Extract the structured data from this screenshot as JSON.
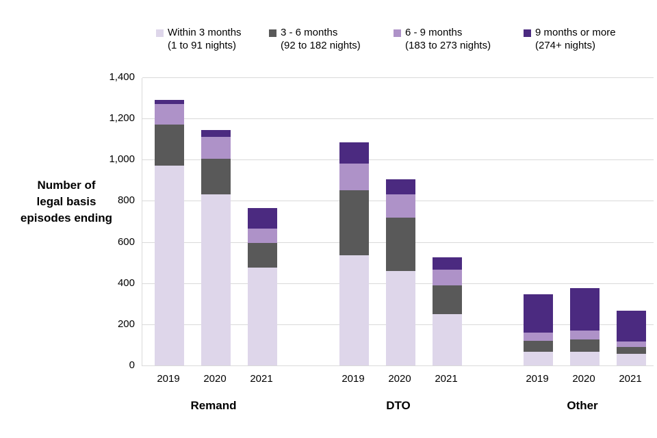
{
  "chart_data": {
    "type": "bar",
    "stacked": true,
    "ylabel_lines": [
      "Number of",
      "legal basis",
      "episodes ending"
    ],
    "ylim": [
      0,
      1400
    ],
    "grid": true,
    "legend_position": "top",
    "yticks": [
      {
        "value": 0,
        "label": "0"
      },
      {
        "value": 200,
        "label": "200"
      },
      {
        "value": 400,
        "label": "400"
      },
      {
        "value": 600,
        "label": "600"
      },
      {
        "value": 800,
        "label": "800"
      },
      {
        "value": 1000,
        "label": "1,000"
      },
      {
        "value": 1200,
        "label": "1,200"
      },
      {
        "value": 1400,
        "label": "1,400"
      }
    ],
    "groups": [
      {
        "label": "Remand",
        "categories": [
          "2019",
          "2020",
          "2021"
        ]
      },
      {
        "label": "DTO",
        "categories": [
          "2019",
          "2020",
          "2021"
        ]
      },
      {
        "label": "Other",
        "categories": [
          "2019",
          "2020",
          "2021"
        ]
      }
    ],
    "series": [
      {
        "legend_line1": "Within 3 months",
        "legend_line2": "(1 to 91 nights)",
        "color": "#ded6ea",
        "values": [
          [
            970,
            830,
            475
          ],
          [
            535,
            460,
            250
          ],
          [
            65,
            65,
            55
          ]
        ]
      },
      {
        "legend_line1": "3 - 6 months",
        "legend_line2": "(92 to 182 nights)",
        "color": "#595959",
        "values": [
          [
            200,
            175,
            120
          ],
          [
            315,
            260,
            140
          ],
          [
            55,
            60,
            35
          ]
        ]
      },
      {
        "legend_line1": "6 - 9 months",
        "legend_line2": "(183 to 273 nights)",
        "color": "#ae92c8",
        "values": [
          [
            100,
            105,
            70
          ],
          [
            130,
            110,
            75
          ],
          [
            40,
            45,
            25
          ]
        ]
      },
      {
        "legend_line1": "9 months or more",
        "legend_line2": "(274+ nights)",
        "color": "#4b2a80",
        "values": [
          [
            20,
            35,
            100
          ],
          [
            105,
            75,
            60
          ],
          [
            185,
            205,
            150
          ]
        ]
      }
    ]
  },
  "colors": {
    "gridline": "#d9d9d9",
    "text": "#000000",
    "background": "#ffffff"
  }
}
